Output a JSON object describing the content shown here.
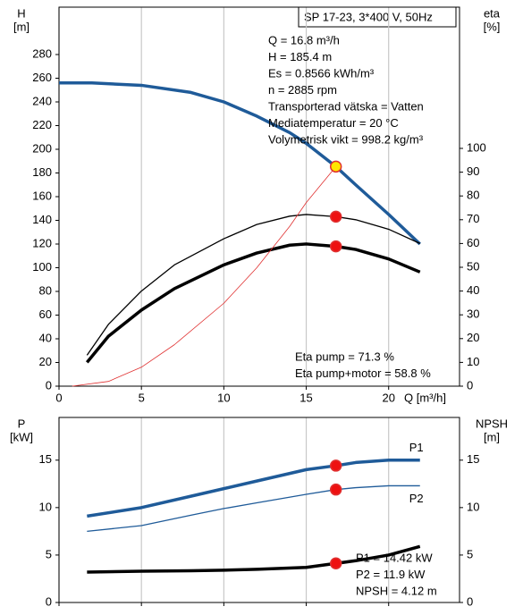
{
  "chart_data": [
    {
      "type": "line",
      "title": "SP 17-23, 3*400 V, 50Hz",
      "annotations": [
        "Q = 16.8 m³/h",
        "H = 185.4 m",
        "Es = 0.8566 kWh/m³",
        "n = 2885 rpm",
        "Transporterad vätska = Vatten",
        "Mediatemperatur = 20 °C",
        "Volymetrisk vikt = 998.2 kg/m³"
      ],
      "notes": [
        "Eta pump = 71.3 %",
        "Eta pump+motor = 58.8 %"
      ],
      "y_label": "H",
      "y_unit": "[m]",
      "y2_label": "eta",
      "y2_unit": "[%]",
      "x_label": "Q [m³/h]",
      "xlim": [
        0,
        24.3
      ],
      "xticks": [
        0,
        5,
        10,
        15,
        20
      ],
      "ylim": [
        0,
        320
      ],
      "yticks": [
        0,
        20,
        40,
        60,
        80,
        100,
        120,
        140,
        160,
        180,
        200,
        220,
        240,
        260,
        280
      ],
      "y2lim": [
        0,
        159.4
      ],
      "y2ticks": [
        0,
        10,
        20,
        30,
        40,
        50,
        60,
        70,
        80,
        90,
        100
      ],
      "grid": true,
      "series": [
        {
          "color": "#1f5b99",
          "width": 3.5,
          "axis": "y",
          "x": [
            0,
            2,
            5,
            8,
            10,
            12,
            14,
            15,
            16.8,
            18,
            20,
            21.9
          ],
          "values": [
            256,
            256,
            254,
            248,
            240,
            228,
            214,
            205,
            185.4,
            170,
            145,
            120
          ]
        },
        {
          "color": "#000000",
          "width": 1.3,
          "axis": "y2",
          "x": [
            1.7,
            3,
            5,
            7,
            10,
            12,
            14,
            15,
            16.8,
            18,
            20,
            21.9
          ],
          "values": [
            13,
            26,
            40,
            51,
            62,
            68,
            71.5,
            72.2,
            71.3,
            70,
            66,
            60
          ]
        },
        {
          "color": "#000000",
          "width": 3.5,
          "axis": "y2",
          "x": [
            1.7,
            3,
            5,
            7,
            10,
            12,
            14,
            15,
            16.8,
            18,
            20,
            21.9
          ],
          "values": [
            10,
            21,
            32,
            41,
            51,
            56,
            59.3,
            59.8,
            58.8,
            57.5,
            53.5,
            48
          ]
        },
        {
          "color": "#e03030",
          "width": 0.8,
          "axis": "y",
          "x": [
            0.8,
            3,
            5,
            7,
            10,
            12,
            14,
            15,
            16.8
          ],
          "values": [
            0,
            4,
            16,
            35,
            70,
            100,
            135,
            155,
            185.4
          ]
        }
      ],
      "markers": [
        {
          "x": 16.8,
          "y": 185.4,
          "axis": "y",
          "color": "#ffe600"
        },
        {
          "x": 16.8,
          "y": 71.3,
          "axis": "y2",
          "color": "#ee1111"
        },
        {
          "x": 16.8,
          "y": 58.8,
          "axis": "y2",
          "color": "#ee1111"
        }
      ]
    },
    {
      "type": "line",
      "annotations": [
        "P1 = 14.42 kW",
        "P2 = 11.9 kW",
        "NPSH = 4.12 m"
      ],
      "y_label": "P",
      "y_unit": "[kW]",
      "y2_label": "NPSH",
      "y2_unit": "[m]",
      "xlim": [
        0,
        24.3
      ],
      "xticks": [
        0,
        5,
        10,
        15,
        20
      ],
      "ylim": [
        0,
        19.5
      ],
      "yticks": [
        0,
        5,
        10,
        15
      ],
      "y2lim": [
        0,
        19.5
      ],
      "y2ticks": [
        0,
        5,
        10,
        15
      ],
      "grid": true,
      "series": [
        {
          "name": "P1",
          "color": "#1f5b99",
          "width": 3.5,
          "axis": "y",
          "x": [
            1.7,
            5,
            8,
            10,
            12,
            15,
            16.8,
            18,
            20,
            21.9
          ],
          "values": [
            9.1,
            10.0,
            11.2,
            12.0,
            12.8,
            14.0,
            14.42,
            14.75,
            15.0,
            15.0
          ]
        },
        {
          "name": "P2",
          "color": "#1f5b99",
          "width": 1.3,
          "axis": "y",
          "x": [
            1.7,
            5,
            8,
            10,
            12,
            15,
            16.8,
            18,
            20,
            21.9
          ],
          "values": [
            7.5,
            8.1,
            9.2,
            9.9,
            10.5,
            11.4,
            11.9,
            12.1,
            12.3,
            12.3
          ]
        },
        {
          "color": "#000000",
          "width": 3.5,
          "axis": "y2",
          "x": [
            1.7,
            5,
            8,
            10,
            12,
            15,
            16.8,
            18,
            20,
            21.9
          ],
          "values": [
            3.2,
            3.3,
            3.35,
            3.4,
            3.5,
            3.7,
            4.12,
            4.4,
            5.0,
            5.9
          ]
        }
      ],
      "markers": [
        {
          "x": 16.8,
          "y": 14.42,
          "axis": "y",
          "color": "#ee1111"
        },
        {
          "x": 16.8,
          "y": 11.9,
          "axis": "y",
          "color": "#ee1111"
        },
        {
          "x": 16.8,
          "y": 4.12,
          "axis": "y2",
          "color": "#ee1111"
        }
      ]
    }
  ]
}
